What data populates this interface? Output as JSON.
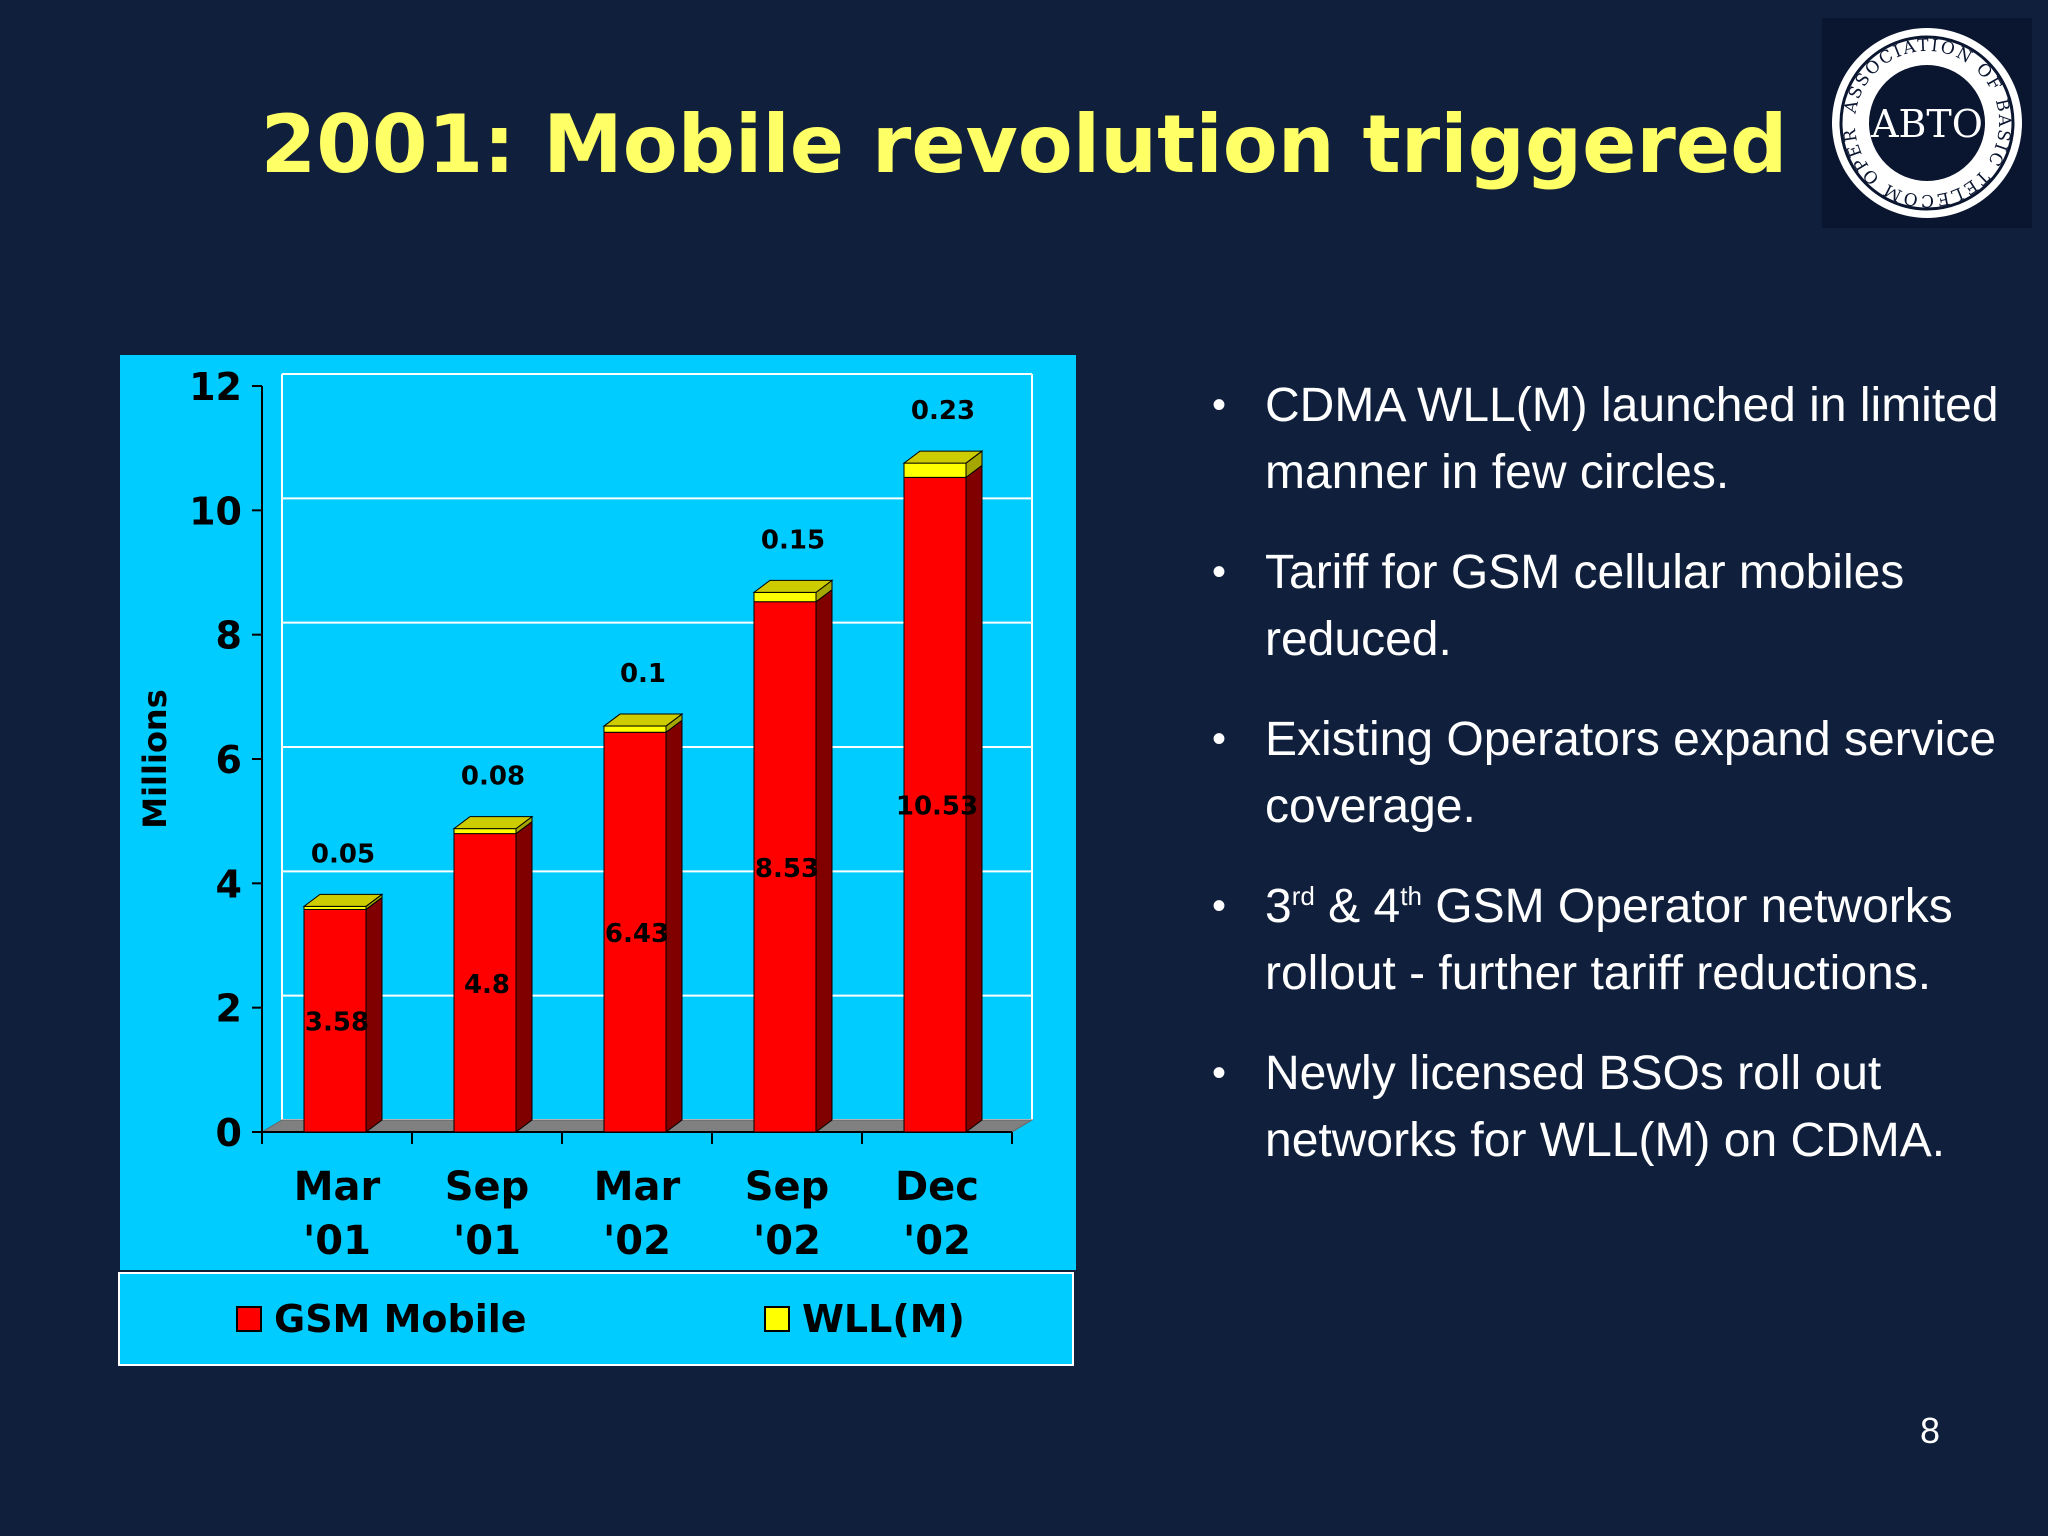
{
  "slide": {
    "title": "2001: Mobile revolution triggered",
    "page_number": "8"
  },
  "logo": {
    "center_text": "ABTO",
    "ring_text": "ASSOCIATION OF BASIC TELECOM OPERATORS"
  },
  "colors": {
    "background": "#0f1f3c",
    "title": "#ffff66",
    "chart_background": "#00ccff",
    "gsm": "#ff0000",
    "wll": "#ffff00"
  },
  "chart_data": {
    "type": "bar",
    "stacked": true,
    "style": "3d",
    "categories": [
      "Mar '01",
      "Sep '01",
      "Mar '02",
      "Sep '02",
      "Dec '02"
    ],
    "category_lines": [
      [
        "Mar",
        "'01"
      ],
      [
        "Sep",
        "'01"
      ],
      [
        "Mar",
        "'02"
      ],
      [
        "Sep",
        "'02"
      ],
      [
        "Dec",
        "'02"
      ]
    ],
    "series": [
      {
        "name": "GSM Mobile",
        "values": [
          3.58,
          4.8,
          6.43,
          8.53,
          10.53
        ],
        "labels": [
          "3.58",
          "4.8",
          "6.43",
          "8.53",
          "10.53"
        ],
        "color": "#ff0000"
      },
      {
        "name": "WLL(M)",
        "values": [
          0.05,
          0.08,
          0.1,
          0.15,
          0.23
        ],
        "labels": [
          "0.05",
          "0.08",
          "0.1",
          "0.15",
          "0.23"
        ],
        "color": "#ffff00"
      }
    ],
    "ylabel": "Millions",
    "ylim": [
      0,
      12
    ],
    "yticks": [
      0,
      2,
      4,
      6,
      8,
      10,
      12
    ],
    "ytick_labels": [
      "0",
      "2",
      "4",
      "6",
      "8",
      "10",
      "12"
    ],
    "grid": true,
    "legend_position": "bottom"
  },
  "bullets": [
    {
      "text": "CDMA WLL(M) launched in limited manner in few circles."
    },
    {
      "text": "Tariff for GSM cellular mobiles reduced."
    },
    {
      "text": "Existing Operators expand service coverage."
    },
    {
      "pre": "3",
      "sup1": "rd",
      "mid": " & 4",
      "sup2": "th",
      "post": " GSM Operator networks rollout - further tariff reductions."
    },
    {
      "text": "Newly licensed BSOs roll out networks for WLL(M) on CDMA."
    }
  ],
  "bullet_symbol": "•"
}
